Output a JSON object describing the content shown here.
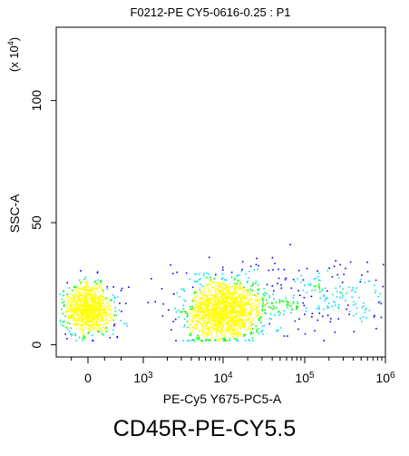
{
  "chart_data": {
    "type": "scatter",
    "title": "F0212-PE CY5-0616-0.25 : P1",
    "xlabel": "PE-Cy5 Y675-PC5-A",
    "ylabel": "SSC-A",
    "y_multiplier_label": "(x 10^4)",
    "caption": "CD45R-PE-CY5.5",
    "x_scale": "biexponential",
    "x_ticks": [
      {
        "value": 0,
        "label": "0"
      },
      {
        "value": 1000,
        "label": "10^3"
      },
      {
        "value": 10000,
        "label": "10^4"
      },
      {
        "value": 100000,
        "label": "10^5"
      },
      {
        "value": 1000000,
        "label": "10^6"
      }
    ],
    "y_ticks": [
      {
        "value": 0,
        "label": "0"
      },
      {
        "value": 50,
        "label": "50"
      },
      {
        "value": 100,
        "label": "100"
      }
    ],
    "ylim": [
      -5,
      130
    ],
    "grid": false,
    "density_coloring": true,
    "populations": [
      {
        "x_center": 0,
        "y_center": 15,
        "x_spread_log": 0.5,
        "y_spread": 5,
        "events": 950
      },
      {
        "x_center": 10000,
        "y_center": 14,
        "x_spread_log": 0.22,
        "y_spread": 6,
        "events": 1500
      },
      {
        "x_center": 100000,
        "y_center": 20,
        "x_spread_log": 0.8,
        "y_spread": 7,
        "events": 350
      }
    ],
    "colors": {
      "low": "#0000ff",
      "mid": "#00e0ff",
      "mid2": "#00ff00",
      "high": "#ffff00"
    }
  }
}
